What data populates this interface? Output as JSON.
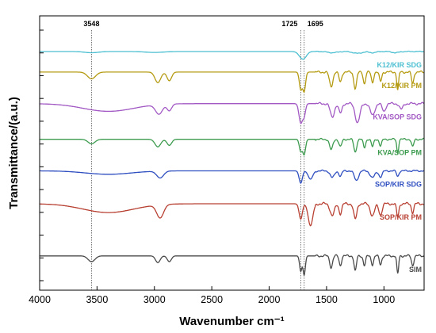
{
  "chart_data": {
    "type": "line",
    "xlabel": "Wavenumber cm⁻¹",
    "ylabel": "Transmittance/(a.u.)",
    "xlim": [
      4000,
      650
    ],
    "x_reversed": true,
    "x_ticks": [
      4000,
      3500,
      3000,
      2500,
      2000,
      1500,
      1000
    ],
    "y_ticks_shown": true,
    "y_tick_values": false,
    "grid": false,
    "reference_lines": [
      {
        "label": "3548",
        "x": 3548,
        "style": "dotted"
      },
      {
        "label": "1725",
        "x": 1725,
        "style": "dotted"
      },
      {
        "label": "1695",
        "x": 1695,
        "style": "dotted"
      }
    ],
    "series": [
      {
        "name": "K12/KIR SDG",
        "color": "#4bbfd1",
        "baseline": 0.87,
        "scale": 0.022,
        "features": [
          [
            3548,
            0.2,
            60
          ],
          [
            3000,
            0.15,
            80
          ],
          [
            1725,
            0.6,
            25
          ],
          [
            1695,
            0.9,
            25
          ],
          [
            1450,
            0.2,
            40
          ],
          [
            1230,
            0.3,
            40
          ],
          [
            1100,
            0.2,
            30
          ],
          [
            900,
            0.2,
            30
          ]
        ]
      },
      {
        "name": "K12/KIR PM",
        "color": "#b59b12",
        "baseline": 0.795,
        "scale": 0.07,
        "features": [
          [
            3548,
            0.35,
            35
          ],
          [
            2970,
            0.55,
            25
          ],
          [
            2870,
            0.45,
            20
          ],
          [
            1725,
            0.9,
            12
          ],
          [
            1695,
            1.0,
            12
          ],
          [
            1460,
            0.75,
            15
          ],
          [
            1380,
            0.5,
            12
          ],
          [
            1250,
            0.85,
            12
          ],
          [
            1170,
            0.6,
            10
          ],
          [
            1100,
            0.55,
            10
          ],
          [
            1030,
            0.5,
            10
          ],
          [
            880,
            0.95,
            8
          ],
          [
            750,
            0.6,
            10
          ]
        ]
      },
      {
        "name": "KVA/SOP SDG",
        "color": "#a259c4",
        "baseline": 0.68,
        "scale": 0.07,
        "features": [
          [
            3400,
            0.4,
            220
          ],
          [
            2960,
            0.5,
            30
          ],
          [
            2870,
            0.35,
            20
          ],
          [
            1725,
            1.0,
            15
          ],
          [
            1695,
            0.6,
            12
          ],
          [
            1450,
            0.7,
            18
          ],
          [
            1380,
            0.5,
            14
          ],
          [
            1230,
            1.0,
            20
          ],
          [
            1100,
            0.6,
            20
          ],
          [
            1000,
            0.4,
            15
          ],
          [
            850,
            0.3,
            15
          ]
        ]
      },
      {
        "name": "KVA/SOP PM",
        "color": "#3c9b4e",
        "baseline": 0.55,
        "scale": 0.055,
        "features": [
          [
            3548,
            0.3,
            30
          ],
          [
            2970,
            0.5,
            25
          ],
          [
            2870,
            0.4,
            20
          ],
          [
            1725,
            0.8,
            12
          ],
          [
            1695,
            1.0,
            12
          ],
          [
            1460,
            0.7,
            14
          ],
          [
            1380,
            0.5,
            12
          ],
          [
            1250,
            0.85,
            12
          ],
          [
            1170,
            0.55,
            10
          ],
          [
            1100,
            0.5,
            10
          ],
          [
            1030,
            0.45,
            10
          ],
          [
            880,
            0.9,
            8
          ],
          [
            750,
            0.5,
            10
          ]
        ]
      },
      {
        "name": "SOP/KIR SDG",
        "color": "#2f4fc0",
        "baseline": 0.435,
        "scale": 0.05,
        "features": [
          [
            3400,
            0.25,
            200
          ],
          [
            2950,
            0.5,
            30
          ],
          [
            1725,
            0.9,
            14
          ],
          [
            1640,
            0.6,
            20
          ],
          [
            1450,
            0.5,
            18
          ],
          [
            1380,
            0.4,
            12
          ],
          [
            1240,
            0.7,
            18
          ],
          [
            1100,
            0.5,
            20
          ],
          [
            1030,
            0.45,
            14
          ],
          [
            880,
            0.4,
            10
          ]
        ]
      },
      {
        "name": "SOP/KIR PM",
        "color": "#b84032",
        "baseline": 0.315,
        "scale": 0.08,
        "features": [
          [
            3400,
            0.4,
            220
          ],
          [
            2950,
            0.6,
            30
          ],
          [
            1725,
            0.7,
            14
          ],
          [
            1640,
            1.0,
            20
          ],
          [
            1450,
            0.55,
            18
          ],
          [
            1380,
            0.45,
            12
          ],
          [
            1250,
            0.7,
            14
          ],
          [
            1100,
            0.55,
            18
          ],
          [
            1030,
            0.5,
            14
          ],
          [
            880,
            0.6,
            10
          ],
          [
            750,
            0.4,
            10
          ]
        ]
      },
      {
        "name": "SIM",
        "color": "#4a4a4a",
        "baseline": 0.125,
        "scale": 0.07,
        "features": [
          [
            3548,
            0.3,
            30
          ],
          [
            2970,
            0.35,
            20
          ],
          [
            2870,
            0.3,
            18
          ],
          [
            1725,
            0.8,
            10
          ],
          [
            1695,
            1.0,
            10
          ],
          [
            1460,
            0.6,
            12
          ],
          [
            1380,
            0.5,
            10
          ],
          [
            1250,
            0.8,
            10
          ],
          [
            1170,
            0.5,
            10
          ],
          [
            1100,
            0.45,
            10
          ],
          [
            1030,
            0.45,
            10
          ],
          [
            880,
            0.95,
            8
          ],
          [
            750,
            0.5,
            10
          ]
        ]
      }
    ]
  }
}
